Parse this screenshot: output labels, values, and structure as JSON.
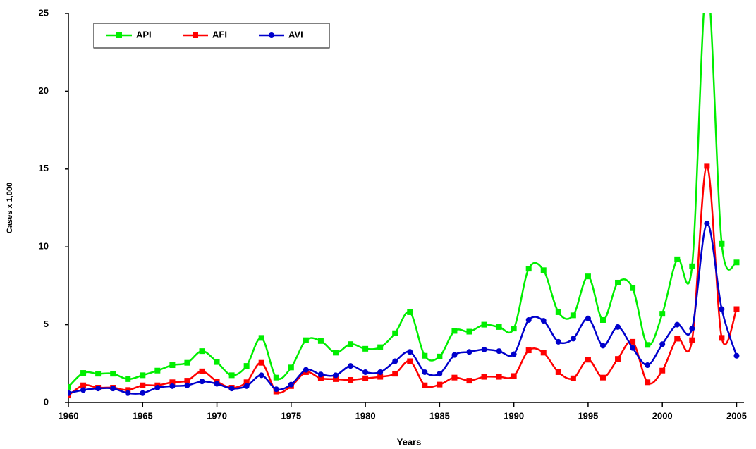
{
  "chart_data": {
    "type": "line",
    "x_label": "Years",
    "y_label": "Cases x 1,000",
    "x": [
      1960,
      1961,
      1962,
      1963,
      1964,
      1965,
      1966,
      1967,
      1968,
      1969,
      1970,
      1971,
      1972,
      1973,
      1974,
      1975,
      1976,
      1977,
      1978,
      1979,
      1980,
      1981,
      1982,
      1983,
      1984,
      1985,
      1986,
      1987,
      1988,
      1989,
      1990,
      1991,
      1992,
      1993,
      1994,
      1995,
      1996,
      1997,
      1998,
      1999,
      2000,
      2001,
      2002,
      2003,
      2004,
      2005
    ],
    "series": [
      {
        "name": "API",
        "color": "#00ee00",
        "marker": "square",
        "values": [
          1.0,
          1.9,
          1.85,
          1.85,
          1.5,
          1.75,
          2.05,
          2.4,
          2.55,
          3.3,
          2.6,
          1.75,
          2.35,
          4.15,
          1.6,
          2.25,
          4.0,
          3.95,
          3.2,
          3.75,
          3.45,
          3.55,
          4.45,
          5.8,
          3.0,
          2.95,
          4.6,
          4.55,
          5.0,
          4.85,
          4.75,
          8.6,
          8.5,
          5.8,
          5.6,
          8.1,
          5.3,
          7.7,
          7.35,
          3.7,
          5.7,
          9.2,
          8.75,
          27,
          10.2,
          9.0
        ]
      },
      {
        "name": "AFI",
        "color": "#ff0000",
        "marker": "square",
        "values": [
          0.45,
          1.1,
          0.95,
          0.95,
          0.8,
          1.1,
          1.1,
          1.3,
          1.4,
          2.0,
          1.35,
          0.95,
          1.3,
          2.55,
          0.7,
          1.05,
          1.95,
          1.55,
          1.5,
          1.45,
          1.55,
          1.65,
          1.85,
          2.65,
          1.1,
          1.15,
          1.6,
          1.4,
          1.65,
          1.65,
          1.7,
          3.35,
          3.2,
          1.95,
          1.55,
          2.75,
          1.6,
          2.8,
          3.9,
          1.3,
          2.05,
          4.1,
          4.0,
          15.2,
          4.15,
          6.0
        ]
      },
      {
        "name": "AVI",
        "color": "#0000cc",
        "marker": "circle",
        "values": [
          0.6,
          0.8,
          0.9,
          0.9,
          0.6,
          0.6,
          0.95,
          1.05,
          1.1,
          1.35,
          1.2,
          0.9,
          1.05,
          1.75,
          0.85,
          1.15,
          2.1,
          1.8,
          1.75,
          2.35,
          1.95,
          1.95,
          2.65,
          3.25,
          1.95,
          1.85,
          3.05,
          3.25,
          3.4,
          3.3,
          3.1,
          5.3,
          5.25,
          3.9,
          4.1,
          5.4,
          3.65,
          4.85,
          3.5,
          2.4,
          3.75,
          5.0,
          4.75,
          11.5,
          6.0,
          3.0
        ]
      }
    ],
    "xlim": [
      1960,
      2005.5
    ],
    "xticks": [
      1960,
      1965,
      1970,
      1975,
      1980,
      1985,
      1990,
      1995,
      2000,
      2005
    ],
    "ylim": [
      0,
      25
    ],
    "yticks": [
      0,
      5,
      10,
      15,
      20,
      25
    ],
    "smooth": true,
    "legend": "top-left"
  }
}
